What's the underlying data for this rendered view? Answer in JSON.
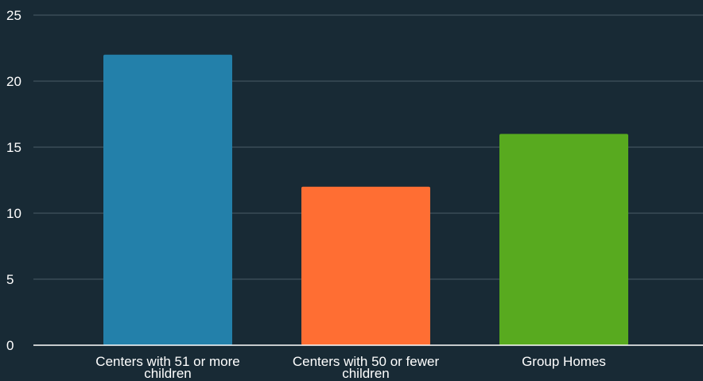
{
  "chart_data": {
    "type": "bar",
    "title": "",
    "xlabel": "",
    "ylabel": "",
    "categories": [
      "Centers with 51 or more children",
      "Centers with 50 or fewer children",
      "Group Homes"
    ],
    "category_lines": [
      [
        "Centers with 51 or more",
        "children"
      ],
      [
        "Centers with 50 or fewer",
        "children"
      ],
      [
        "Group Homes"
      ]
    ],
    "values": [
      22,
      12,
      16
    ],
    "colors": [
      "#2380aa",
      "#ff6e33",
      "#58aa1f"
    ],
    "ylim": [
      0,
      25
    ],
    "yticks": [
      0,
      5,
      10,
      15,
      20,
      25
    ],
    "grid": true,
    "legend": "none",
    "background": "#182a35",
    "gridline_color": "#4a5c66",
    "axis_color": "#ffffff",
    "text_color": "#ffffff"
  }
}
